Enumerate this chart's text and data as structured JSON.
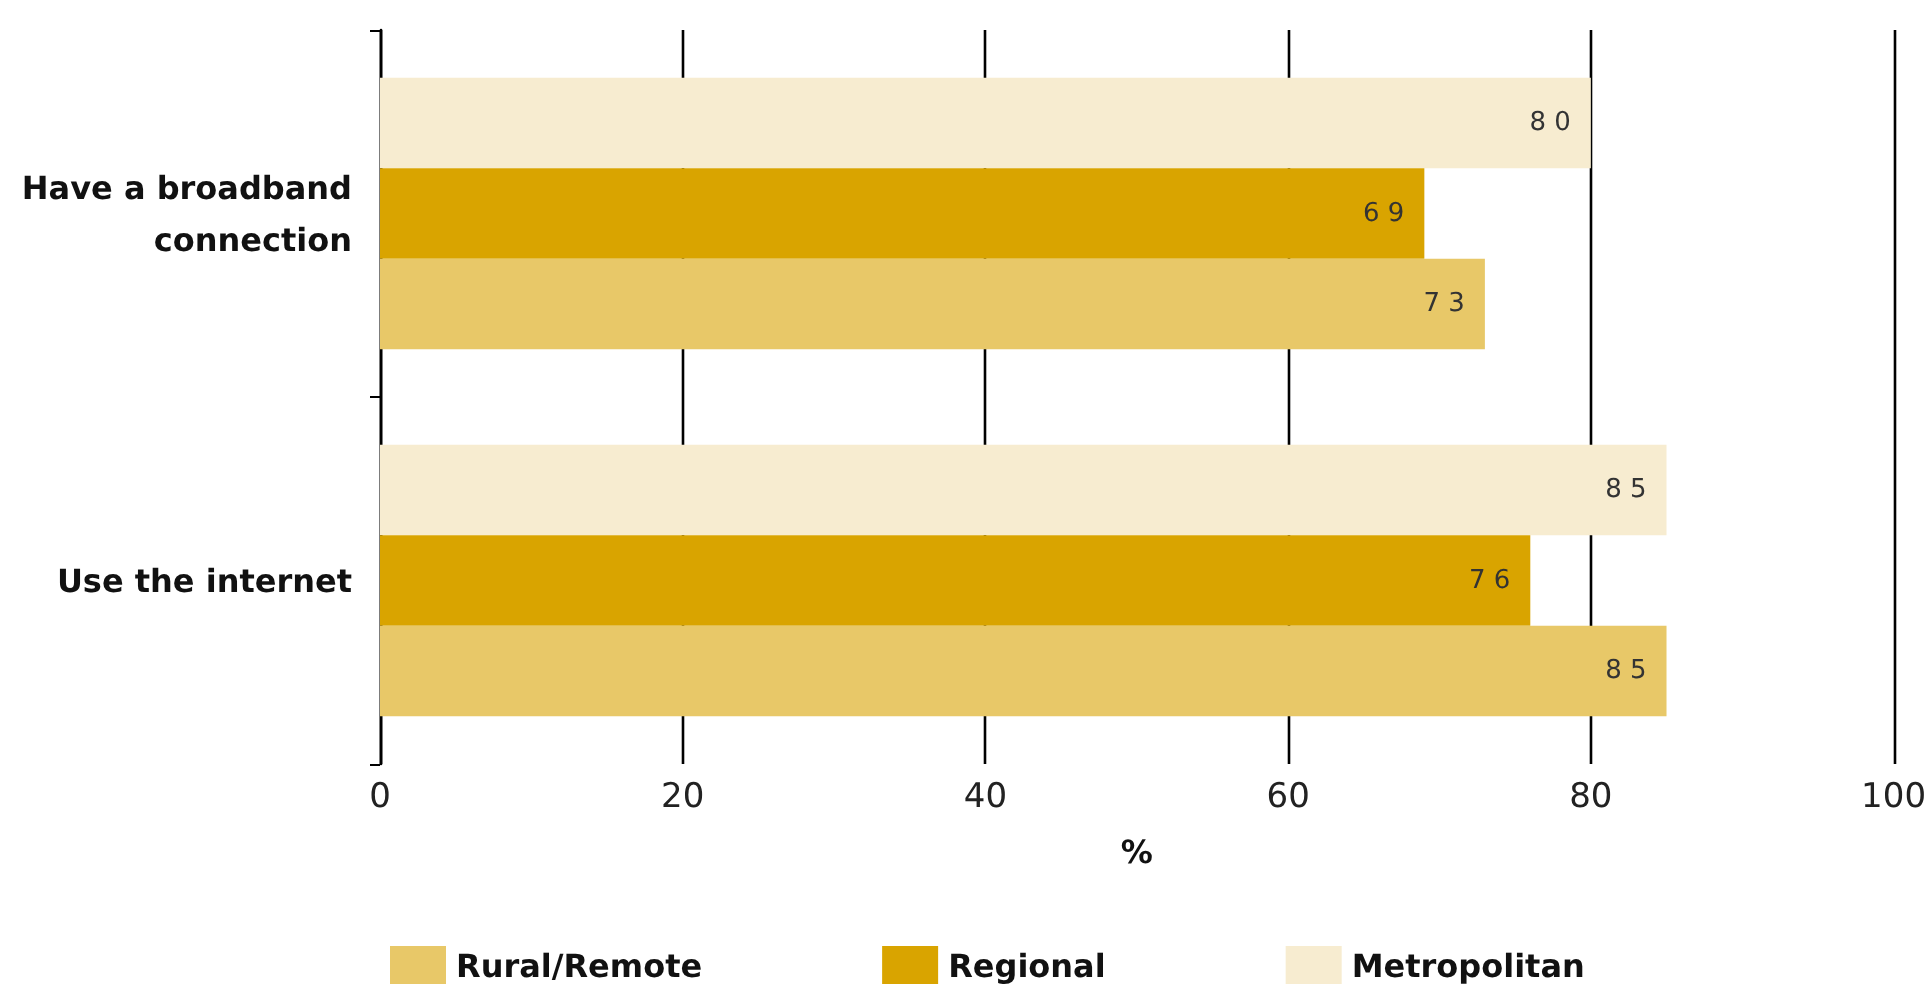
{
  "chart_data": {
    "type": "bar",
    "orientation": "horizontal",
    "xlabel": "%",
    "categories": [
      "Have a broadband connection",
      "Use the internet"
    ],
    "series": [
      {
        "name": "Rural/Remote",
        "color": "#e8c868",
        "values": [
          73,
          85
        ]
      },
      {
        "name": "Regional",
        "color": "#d9a400",
        "values": [
          69,
          76
        ]
      },
      {
        "name": "Metropolitan",
        "color": "#f7ecd0",
        "values": [
          80,
          85
        ]
      }
    ],
    "xlim": [
      0,
      100
    ],
    "xticks": [
      0,
      20,
      40,
      60,
      80,
      100
    ],
    "grid": "x",
    "legend": "bottom",
    "data_labels": true
  }
}
